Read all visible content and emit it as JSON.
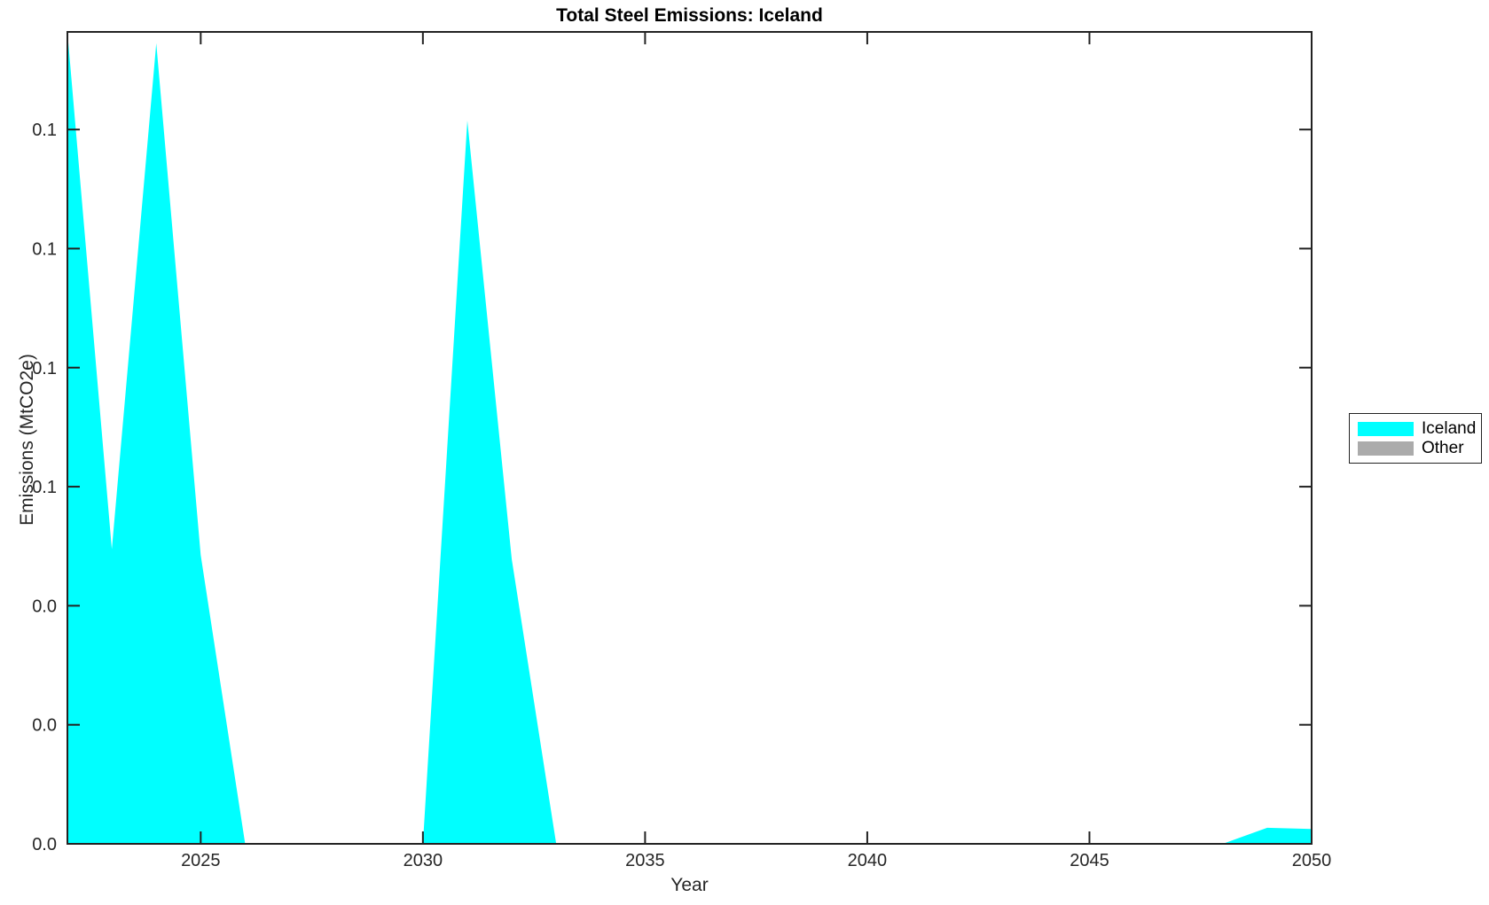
{
  "chart_data": {
    "type": "area",
    "title": "Total Steel Emissions: Iceland",
    "xlabel": "Year",
    "ylabel": "Emissions (MtCO2e)",
    "x": [
      2022,
      2023,
      2024,
      2025,
      2026,
      2027,
      2028,
      2029,
      2030,
      2031,
      2032,
      2033,
      2034,
      2035,
      2036,
      2037,
      2038,
      2039,
      2040,
      2041,
      2042,
      2043,
      2044,
      2045,
      2046,
      2047,
      2048,
      2049,
      2050
    ],
    "series": [
      {
        "name": "Iceland",
        "color": "#00ffff",
        "values": [
          0.1364,
          0.0495,
          0.1345,
          0.0485,
          0,
          0,
          0,
          0,
          0,
          0.1215,
          0.0478,
          0,
          0,
          0,
          0,
          0,
          0,
          0,
          0,
          0,
          0,
          0,
          0,
          0,
          0,
          0,
          0,
          0.0027,
          0.0025
        ]
      },
      {
        "name": "Other",
        "color": "#ababab",
        "values": [
          0,
          0,
          0,
          0,
          0,
          0,
          0,
          0,
          0,
          0,
          0,
          0,
          0,
          0,
          0,
          0,
          0,
          0,
          0,
          0,
          0,
          0,
          0,
          0,
          0,
          0,
          0,
          0,
          0
        ]
      }
    ],
    "stacked": true,
    "xlim": [
      2022,
      2050
    ],
    "ylim": [
      0,
      0.1364
    ],
    "x_ticks": [
      2025,
      2030,
      2035,
      2040,
      2045,
      2050
    ],
    "x_tick_labels": [
      "2025",
      "2030",
      "2035",
      "2040",
      "2045",
      "2050"
    ],
    "y_ticks": [
      0,
      0.02,
      0.04,
      0.06,
      0.08,
      0.1,
      0.12
    ],
    "y_tick_labels": [
      "0.0",
      "0.0",
      "0.0",
      "0.1",
      "0.1",
      "0.1",
      "0.1"
    ],
    "grid": false,
    "legend": {
      "position": "outside-right",
      "entries": [
        "Iceland",
        "Other"
      ]
    },
    "axis_color": "#222222",
    "tick_label_color": "#262626",
    "background": "#ffffff"
  }
}
